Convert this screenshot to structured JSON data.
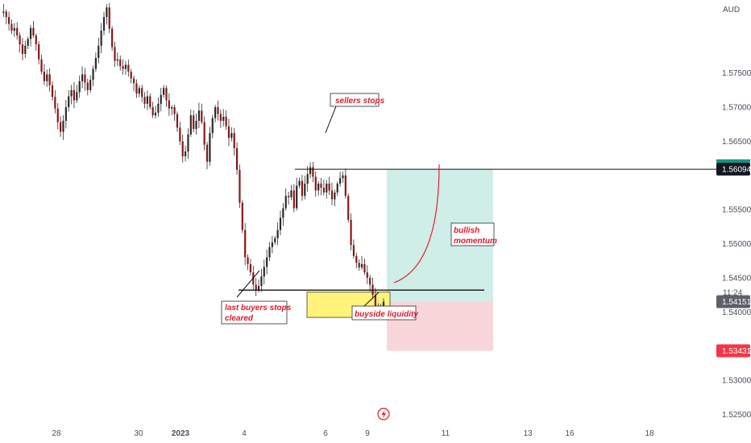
{
  "chart_data": {
    "type": "candlestick",
    "currency": "AUD",
    "y_axis": {
      "ticks": [
        "1.57500",
        "1.57000",
        "1.56500",
        "1.55500",
        "1.55000",
        "1.54500",
        "1.54000",
        "1.53000",
        "1.52500"
      ],
      "tick_values": [
        1.575,
        1.57,
        1.565,
        1.555,
        1.55,
        1.545,
        1.54,
        1.53,
        1.525
      ],
      "range": [
        1.5208,
        1.5857
      ]
    },
    "x_axis": {
      "ticks": [
        "28",
        "30",
        "2023",
        "4",
        "6",
        "9",
        "11",
        "13",
        "16",
        "18"
      ]
    },
    "price_tags": [
      {
        "label": "1.56094",
        "value": 1.56094,
        "style": "dark"
      },
      {
        "label": "1.54151",
        "value": 1.54151,
        "style": "grey"
      },
      {
        "label": "1.53431",
        "value": 1.53431,
        "style": "red"
      }
    ],
    "countdown": "11:24",
    "levels": [
      {
        "name": "sellers stops level",
        "value": 1.5609
      },
      {
        "name": "buyers stops level",
        "value": 1.5432
      }
    ],
    "position": {
      "entry": 1.54151,
      "target": 1.56094,
      "stop": 1.53431
    },
    "zone": {
      "name": "demand zone",
      "high": 1.5429,
      "low": 1.5392,
      "color": "#fff37a"
    },
    "annotations": [
      {
        "text": "sellers stops"
      },
      {
        "text": "last buyers stops cleared"
      },
      {
        "text": "buyside liquidity"
      },
      {
        "text": "bullish momentum"
      }
    ],
    "candle_path": [
      1.5838,
      1.584,
      1.5832,
      1.5822,
      1.5812,
      1.5816,
      1.5805,
      1.5792,
      1.5778,
      1.579,
      1.58,
      1.5816,
      1.5805,
      1.5792,
      1.577,
      1.5752,
      1.5738,
      1.5748,
      1.5732,
      1.5715,
      1.5698,
      1.5678,
      1.5664,
      1.568,
      1.57,
      1.5716,
      1.5725,
      1.571,
      1.5722,
      1.5738,
      1.5748,
      1.5736,
      1.5725,
      1.574,
      1.5756,
      1.5772,
      1.579,
      1.5812,
      1.5832,
      1.5846,
      1.5815,
      1.5788,
      1.5768,
      1.577,
      1.576,
      1.5756,
      1.5762,
      1.5752,
      1.5742,
      1.5735,
      1.572,
      1.5728,
      1.5715,
      1.5705,
      1.5716,
      1.57,
      1.5688,
      1.5692,
      1.5705,
      1.5718,
      1.5728,
      1.571,
      1.5698,
      1.57,
      1.569,
      1.567,
      1.565,
      1.5628,
      1.5635,
      1.566,
      1.5688,
      1.5668,
      1.568,
      1.5695,
      1.5678,
      1.5645,
      1.562,
      1.5662,
      1.5684,
      1.57,
      1.569,
      1.568,
      1.5686,
      1.5672,
      1.5655,
      1.5662,
      1.564,
      1.5608,
      1.556,
      1.552,
      1.548,
      1.547,
      1.5458,
      1.544,
      1.5432,
      1.5438,
      1.5452,
      1.5466,
      1.548,
      1.5495,
      1.5502,
      1.5508,
      1.552,
      1.5538,
      1.5552,
      1.557,
      1.5568,
      1.5578,
      1.5552,
      1.5585,
      1.5592,
      1.557,
      1.5588,
      1.5602,
      1.5612,
      1.5598,
      1.5578,
      1.5588,
      1.5582,
      1.5575,
      1.5588,
      1.5578,
      1.5565,
      1.5575,
      1.5588,
      1.5596,
      1.56,
      1.557,
      1.5535,
      1.5498,
      1.5482,
      1.5472,
      1.5465,
      1.547,
      1.5458,
      1.545,
      1.544,
      1.5425,
      1.5408,
      1.5396,
      1.5405,
      1.5415
    ]
  }
}
